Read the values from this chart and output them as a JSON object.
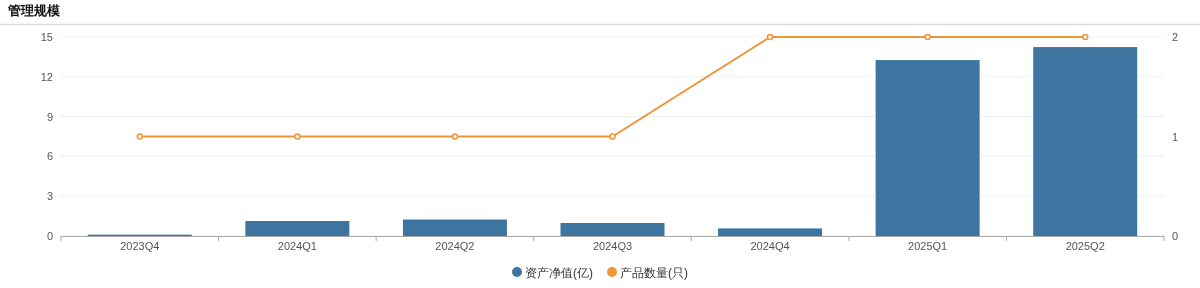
{
  "chart_data": {
    "type": "bar",
    "title": "管理规模",
    "categories": [
      "2023Q4",
      "2024Q1",
      "2024Q2",
      "2024Q3",
      "2024Q4",
      "2025Q1",
      "2025Q2"
    ],
    "series": [
      {
        "name": "资产净值(亿)",
        "color": "#3d74a0",
        "values": [
          0.1,
          1.13,
          1.24,
          0.98,
          0.57,
          13.26,
          14.24
        ]
      },
      {
        "name": "产品数量(只)",
        "type": "line",
        "axis": "y2",
        "color": "#f0943a",
        "values": [
          1,
          1,
          1,
          1,
          2,
          2,
          2
        ]
      }
    ],
    "ylim": [
      0,
      15
    ],
    "yticks": [
      0,
      3,
      6,
      9,
      12,
      15
    ],
    "y2lim": [
      0,
      2
    ],
    "y2ticks": [
      0,
      1,
      2
    ],
    "grid": "y",
    "legend": "bottom",
    "marker": "circle",
    "line_style": "solid"
  }
}
